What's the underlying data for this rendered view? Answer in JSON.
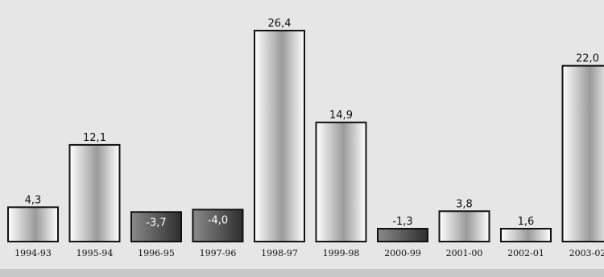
{
  "chart_data": {
    "type": "bar",
    "categories": [
      "1994-93",
      "1995-94",
      "1996-95",
      "1997-96",
      "1998-97",
      "1999-98",
      "2000-99",
      "2001-00",
      "2002-01",
      "2003-02"
    ],
    "values": [
      4.3,
      12.1,
      -3.7,
      -4.0,
      26.4,
      14.9,
      -1.3,
      3.8,
      1.6,
      22.0
    ],
    "value_labels": [
      "4,3",
      "12,1",
      "-3,7",
      "-4,0",
      "26,4",
      "14,9",
      "-1,3",
      "3,8",
      "1,6",
      "22,0"
    ],
    "title": "",
    "xlabel": "",
    "ylabel": "",
    "ylim": [
      -5,
      27
    ],
    "grid": false,
    "legend": "none",
    "colors": {
      "background": "#e6e6e6",
      "bottom_band": "#c8c8c8",
      "bar_light": "#ffffff",
      "bar_mid": "#9a9a9a",
      "bar_dark_light": "#8a8a8a",
      "bar_dark_mid": "#2e2e2e",
      "outline": "#111111"
    }
  }
}
